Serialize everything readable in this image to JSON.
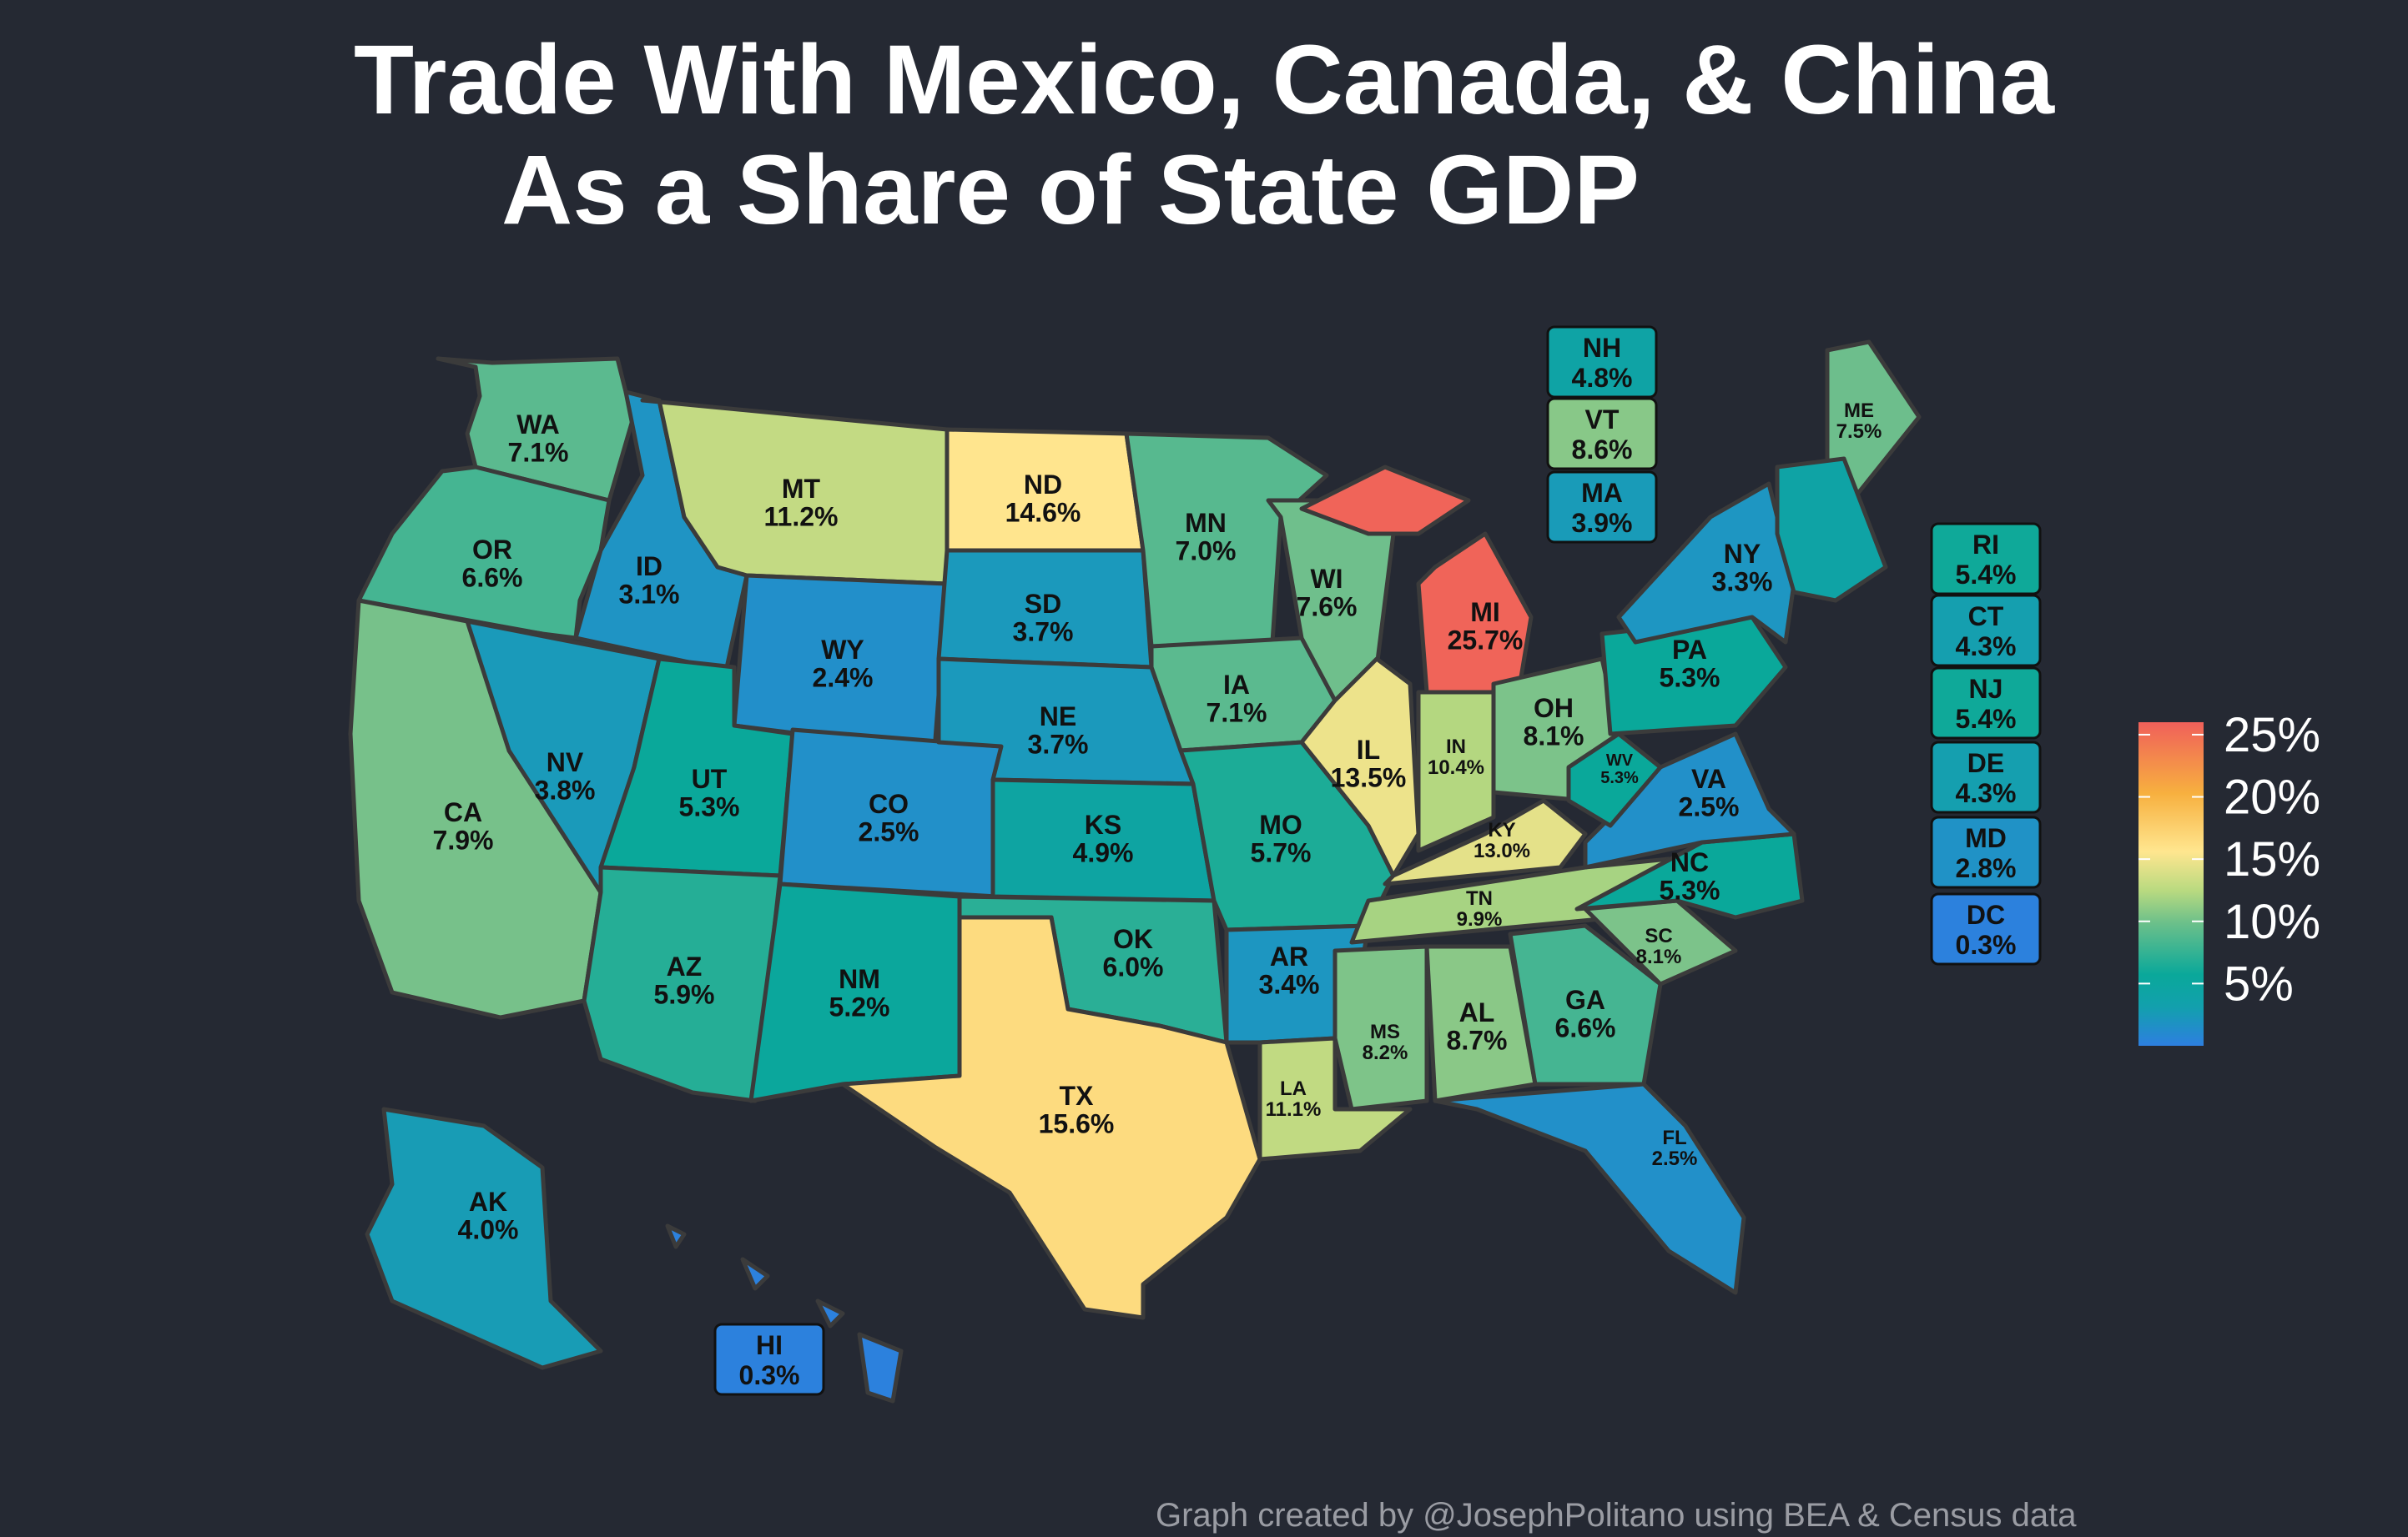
{
  "title": {
    "line1": "Trade With Mexico, Canada, & China",
    "line2": "As a Share of State GDP"
  },
  "caption": "Graph created by @JosephPolitano using BEA & Census data",
  "legend": {
    "ticks": [
      "25%",
      "20%",
      "15%",
      "10%",
      "5%"
    ],
    "tick_values": [
      25,
      20,
      15,
      10,
      5
    ],
    "range": [
      0,
      26
    ],
    "colors": [
      "#2d7fe0",
      "#12a3a6",
      "#0aa89a",
      "#5ebd8b",
      "#b3d97f",
      "#ffe68f",
      "#f7b03f",
      "#f0605a"
    ]
  },
  "states": [
    {
      "abbr": "WA",
      "value": "7.1%",
      "num": 7.1
    },
    {
      "abbr": "OR",
      "value": "6.6%",
      "num": 6.6
    },
    {
      "abbr": "CA",
      "value": "7.9%",
      "num": 7.9
    },
    {
      "abbr": "ID",
      "value": "3.1%",
      "num": 3.1
    },
    {
      "abbr": "NV",
      "value": "3.8%",
      "num": 3.8
    },
    {
      "abbr": "MT",
      "value": "11.2%",
      "num": 11.2
    },
    {
      "abbr": "WY",
      "value": "2.4%",
      "num": 2.4
    },
    {
      "abbr": "UT",
      "value": "5.3%",
      "num": 5.3
    },
    {
      "abbr": "AZ",
      "value": "5.9%",
      "num": 5.9
    },
    {
      "abbr": "CO",
      "value": "2.5%",
      "num": 2.5
    },
    {
      "abbr": "NM",
      "value": "5.2%",
      "num": 5.2
    },
    {
      "abbr": "ND",
      "value": "14.6%",
      "num": 14.6
    },
    {
      "abbr": "SD",
      "value": "3.7%",
      "num": 3.7
    },
    {
      "abbr": "NE",
      "value": "3.7%",
      "num": 3.7
    },
    {
      "abbr": "KS",
      "value": "4.9%",
      "num": 4.9
    },
    {
      "abbr": "OK",
      "value": "6.0%",
      "num": 6.0
    },
    {
      "abbr": "TX",
      "value": "15.6%",
      "num": 15.6
    },
    {
      "abbr": "MN",
      "value": "7.0%",
      "num": 7.0
    },
    {
      "abbr": "IA",
      "value": "7.1%",
      "num": 7.1
    },
    {
      "abbr": "MO",
      "value": "5.7%",
      "num": 5.7
    },
    {
      "abbr": "AR",
      "value": "3.4%",
      "num": 3.4
    },
    {
      "abbr": "LA",
      "value": "11.1%",
      "num": 11.1
    },
    {
      "abbr": "WI",
      "value": "7.6%",
      "num": 7.6
    },
    {
      "abbr": "IL",
      "value": "13.5%",
      "num": 13.5
    },
    {
      "abbr": "MI",
      "value": "25.7%",
      "num": 25.7
    },
    {
      "abbr": "IN",
      "value": "10.4%",
      "num": 10.4
    },
    {
      "abbr": "OH",
      "value": "8.1%",
      "num": 8.1
    },
    {
      "abbr": "KY",
      "value": "13.0%",
      "num": 13.0
    },
    {
      "abbr": "TN",
      "value": "9.9%",
      "num": 9.9
    },
    {
      "abbr": "MS",
      "value": "8.2%",
      "num": 8.2
    },
    {
      "abbr": "AL",
      "value": "8.7%",
      "num": 8.7
    },
    {
      "abbr": "GA",
      "value": "6.6%",
      "num": 6.6
    },
    {
      "abbr": "FL",
      "value": "2.5%",
      "num": 2.5
    },
    {
      "abbr": "SC",
      "value": "8.1%",
      "num": 8.1
    },
    {
      "abbr": "NC",
      "value": "5.3%",
      "num": 5.3
    },
    {
      "abbr": "VA",
      "value": "2.5%",
      "num": 2.5
    },
    {
      "abbr": "WV",
      "value": "5.3%",
      "num": 5.3
    },
    {
      "abbr": "PA",
      "value": "5.3%",
      "num": 5.3
    },
    {
      "abbr": "NY",
      "value": "3.3%",
      "num": 3.3
    },
    {
      "abbr": "ME",
      "value": "7.5%",
      "num": 7.5
    },
    {
      "abbr": "AK",
      "value": "4.0%",
      "num": 4.0
    },
    {
      "abbr": "HI",
      "value": "0.3%",
      "num": 0.3
    },
    {
      "abbr": "NH",
      "value": "4.8%",
      "num": 4.8
    },
    {
      "abbr": "VT",
      "value": "8.6%",
      "num": 8.6
    },
    {
      "abbr": "MA",
      "value": "3.9%",
      "num": 3.9
    },
    {
      "abbr": "RI",
      "value": "5.4%",
      "num": 5.4
    },
    {
      "abbr": "CT",
      "value": "4.3%",
      "num": 4.3
    },
    {
      "abbr": "NJ",
      "value": "5.4%",
      "num": 5.4
    },
    {
      "abbr": "DE",
      "value": "4.3%",
      "num": 4.3
    },
    {
      "abbr": "MD",
      "value": "2.8%",
      "num": 2.8
    },
    {
      "abbr": "DC",
      "value": "0.3%",
      "num": 0.3
    }
  ]
}
